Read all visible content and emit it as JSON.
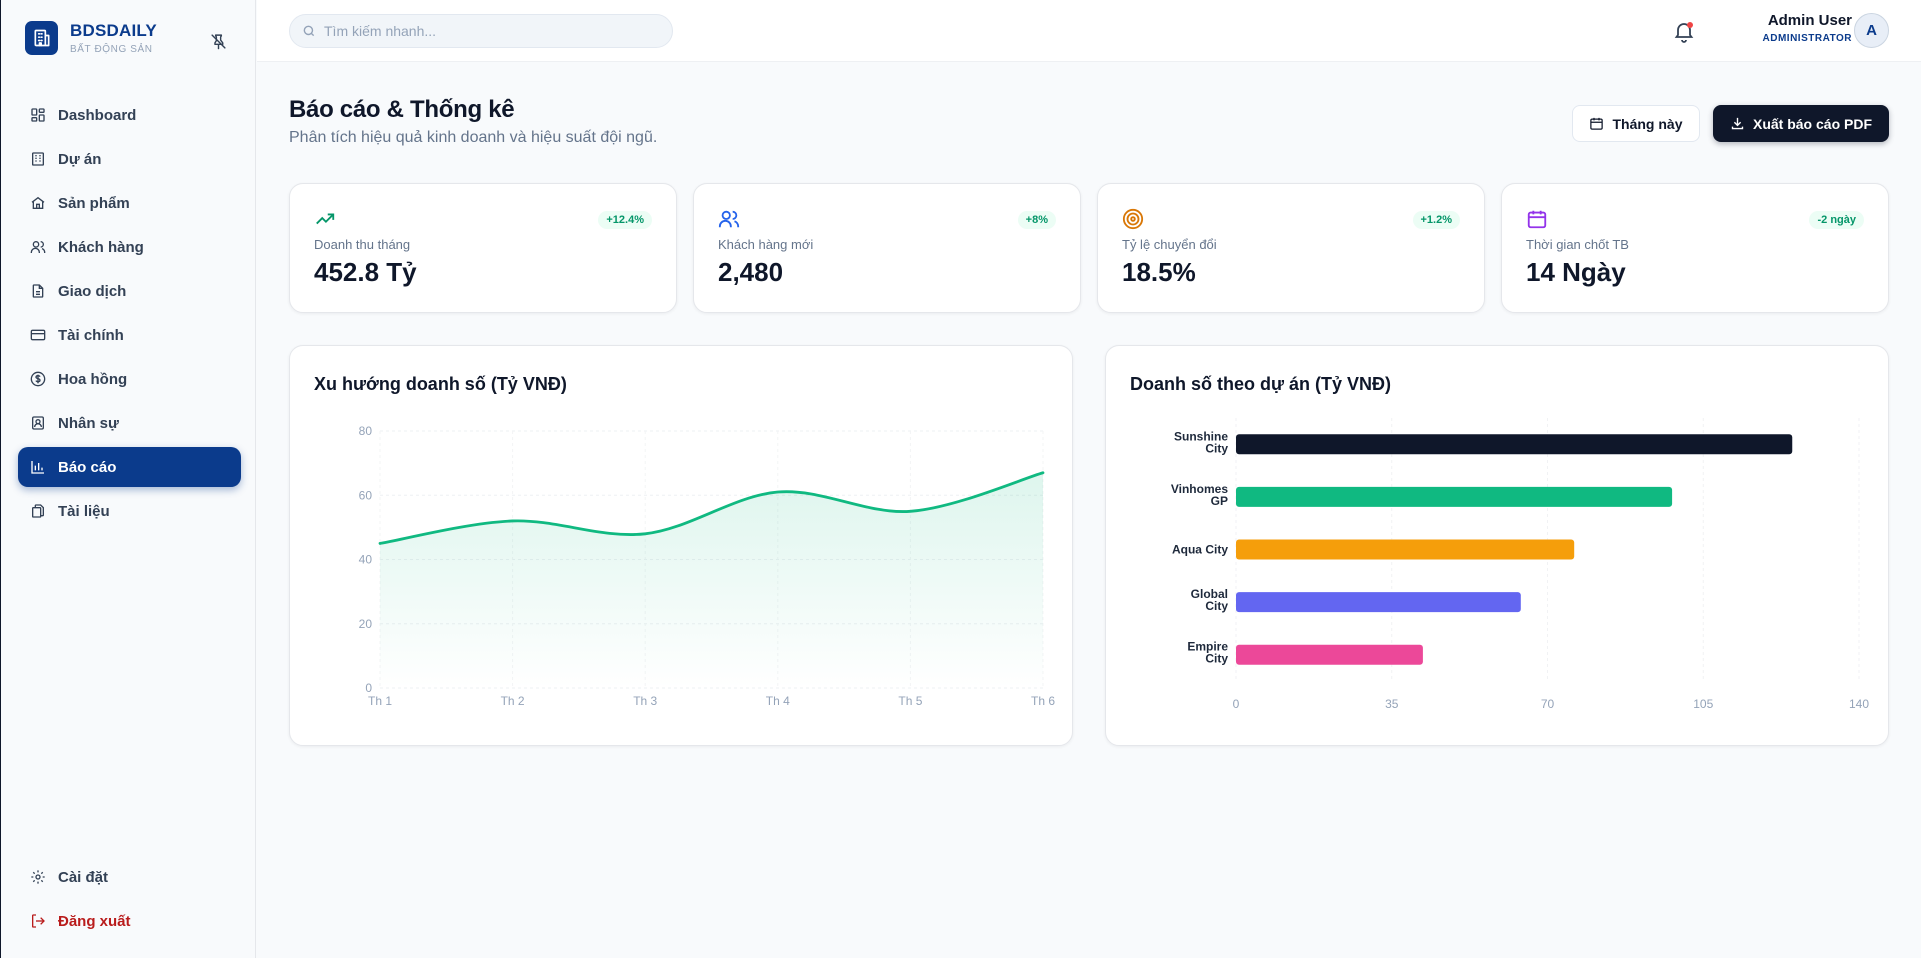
{
  "brand": {
    "name": "BDSDAILY",
    "subtitle": "BẤT ĐỘNG SẢN"
  },
  "sidebar": {
    "items": [
      {
        "label": "Dashboard",
        "icon": "grid-icon"
      },
      {
        "label": "Dự án",
        "icon": "building-icon"
      },
      {
        "label": "Sản phẩm",
        "icon": "home-icon"
      },
      {
        "label": "Khách hàng",
        "icon": "users-icon"
      },
      {
        "label": "Giao dịch",
        "icon": "file-icon"
      },
      {
        "label": "Tài chính",
        "icon": "credit-card-icon"
      },
      {
        "label": "Hoa hồng",
        "icon": "dollar-circle-icon"
      },
      {
        "label": "Nhân sự",
        "icon": "id-badge-icon"
      },
      {
        "label": "Báo cáo",
        "icon": "bar-chart-icon",
        "active": true
      },
      {
        "label": "Tài liệu",
        "icon": "documents-icon"
      }
    ],
    "bottom": [
      {
        "label": "Cài đặt",
        "icon": "gear-icon"
      },
      {
        "label": "Đăng xuất",
        "icon": "logout-icon"
      }
    ]
  },
  "header": {
    "search_placeholder": "Tìm kiếm nhanh...",
    "user_name": "Admin User",
    "user_role": "ADMINISTRATOR",
    "avatar_initial": "A"
  },
  "page": {
    "title": "Báo cáo & Thống kê",
    "subtitle": "Phân tích hiệu quả kinh doanh và hiệu suất đội ngũ.",
    "period_button": "Tháng này",
    "export_button": "Xuất báo cáo PDF"
  },
  "kpis": [
    {
      "label": "Doanh thu tháng",
      "value": "452.8 Tỷ",
      "badge": "+12.4%",
      "icon": "trending-up-icon",
      "color": "#059669"
    },
    {
      "label": "Khách hàng mới",
      "value": "2,480",
      "badge": "+8%",
      "icon": "users-icon",
      "color": "#2563eb"
    },
    {
      "label": "Tỷ lệ chuyển đổi",
      "value": "18.5%",
      "badge": "+1.2%",
      "icon": "target-icon",
      "color": "#d97706"
    },
    {
      "label": "Thời gian chốt TB",
      "value": "14 Ngày",
      "badge": "-2 ngày",
      "icon": "calendar-icon",
      "color": "#9333ea"
    }
  ],
  "charts": {
    "trend_title": "Xu hướng doanh số (Tỷ VNĐ)",
    "project_title": "Doanh số theo dự án (Tỷ VNĐ)"
  },
  "chart_data": [
    {
      "type": "area",
      "title": "Xu hướng doanh số (Tỷ VNĐ)",
      "categories": [
        "Th 1",
        "Th 2",
        "Th 3",
        "Th 4",
        "Th 5",
        "Th 6"
      ],
      "values": [
        45,
        52,
        48,
        61,
        55,
        67
      ],
      "ylim": [
        0,
        80
      ],
      "yticks": [
        0,
        20,
        40,
        60,
        80
      ],
      "color": "#10b981",
      "grid": true
    },
    {
      "type": "bar",
      "orientation": "horizontal",
      "title": "Doanh số theo dự án (Tỷ VNĐ)",
      "categories": [
        "Sunshine City",
        "Vinhomes GP",
        "Aqua City",
        "Global City",
        "Empire City"
      ],
      "values": [
        125,
        98,
        76,
        64,
        42
      ],
      "colors": [
        "#0f172a",
        "#10b981",
        "#f59e0b",
        "#6366f1",
        "#ec4899"
      ],
      "xlim": [
        0,
        140
      ],
      "xticks": [
        0,
        35,
        70,
        105,
        140
      ],
      "grid": true
    }
  ]
}
